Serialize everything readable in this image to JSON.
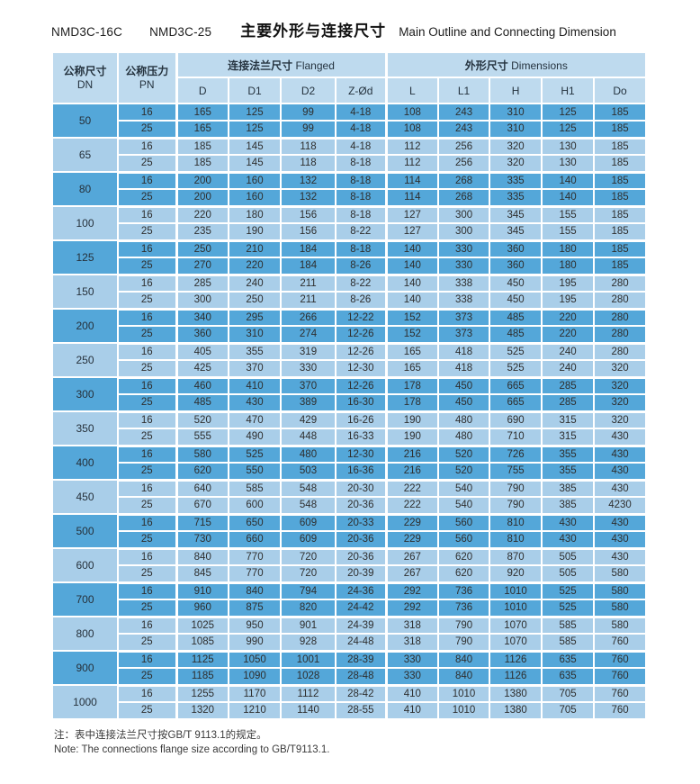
{
  "title": {
    "model1": "NMD3C-16C",
    "model2": "NMD3C-25",
    "cn": "主要外形与连接尺寸",
    "en": "Main Outline and Connecting Dimension"
  },
  "colors": {
    "header_bg": "#bedaee",
    "row_dark": "#54a7d9",
    "row_light": "#a9cee9",
    "border": "#ffffff"
  },
  "table": {
    "headers": {
      "dn_cn": "公称尺寸",
      "dn_code": "DN",
      "pn_cn": "公称压力",
      "pn_code": "PN",
      "flanged_group_cn": "连接法兰尺寸",
      "flanged_group_en": "Flanged",
      "dims_group_cn": "外形尺寸",
      "dims_group_en": "Dimensions",
      "flanged_cols": [
        "D",
        "D1",
        "D2",
        "Z-Ød"
      ],
      "dims_cols": [
        "L",
        "L1",
        "H",
        "H1",
        "Do"
      ]
    },
    "groups": [
      {
        "dn": "50",
        "shade": "dark",
        "rows": [
          [
            "16",
            "165",
            "125",
            "99",
            "4-18",
            "108",
            "243",
            "310",
            "125",
            "185"
          ],
          [
            "25",
            "165",
            "125",
            "99",
            "4-18",
            "108",
            "243",
            "310",
            "125",
            "185"
          ]
        ]
      },
      {
        "dn": "65",
        "shade": "light",
        "rows": [
          [
            "16",
            "185",
            "145",
            "118",
            "4-18",
            "112",
            "256",
            "320",
            "130",
            "185"
          ],
          [
            "25",
            "185",
            "145",
            "118",
            "8-18",
            "112",
            "256",
            "320",
            "130",
            "185"
          ]
        ]
      },
      {
        "dn": "80",
        "shade": "dark",
        "rows": [
          [
            "16",
            "200",
            "160",
            "132",
            "8-18",
            "114",
            "268",
            "335",
            "140",
            "185"
          ],
          [
            "25",
            "200",
            "160",
            "132",
            "8-18",
            "114",
            "268",
            "335",
            "140",
            "185"
          ]
        ]
      },
      {
        "dn": "100",
        "shade": "light",
        "rows": [
          [
            "16",
            "220",
            "180",
            "156",
            "8-18",
            "127",
            "300",
            "345",
            "155",
            "185"
          ],
          [
            "25",
            "235",
            "190",
            "156",
            "8-22",
            "127",
            "300",
            "345",
            "155",
            "185"
          ]
        ]
      },
      {
        "dn": "125",
        "shade": "dark",
        "rows": [
          [
            "16",
            "250",
            "210",
            "184",
            "8-18",
            "140",
            "330",
            "360",
            "180",
            "185"
          ],
          [
            "25",
            "270",
            "220",
            "184",
            "8-26",
            "140",
            "330",
            "360",
            "180",
            "185"
          ]
        ]
      },
      {
        "dn": "150",
        "shade": "light",
        "rows": [
          [
            "16",
            "285",
            "240",
            "211",
            "8-22",
            "140",
            "338",
            "450",
            "195",
            "280"
          ],
          [
            "25",
            "300",
            "250",
            "211",
            "8-26",
            "140",
            "338",
            "450",
            "195",
            "280"
          ]
        ]
      },
      {
        "dn": "200",
        "shade": "dark",
        "rows": [
          [
            "16",
            "340",
            "295",
            "266",
            "12-22",
            "152",
            "373",
            "485",
            "220",
            "280"
          ],
          [
            "25",
            "360",
            "310",
            "274",
            "12-26",
            "152",
            "373",
            "485",
            "220",
            "280"
          ]
        ]
      },
      {
        "dn": "250",
        "shade": "light",
        "rows": [
          [
            "16",
            "405",
            "355",
            "319",
            "12-26",
            "165",
            "418",
            "525",
            "240",
            "280"
          ],
          [
            "25",
            "425",
            "370",
            "330",
            "12-30",
            "165",
            "418",
            "525",
            "240",
            "320"
          ]
        ]
      },
      {
        "dn": "300",
        "shade": "dark",
        "rows": [
          [
            "16",
            "460",
            "410",
            "370",
            "12-26",
            "178",
            "450",
            "665",
            "285",
            "320"
          ],
          [
            "25",
            "485",
            "430",
            "389",
            "16-30",
            "178",
            "450",
            "665",
            "285",
            "320"
          ]
        ]
      },
      {
        "dn": "350",
        "shade": "light",
        "rows": [
          [
            "16",
            "520",
            "470",
            "429",
            "16-26",
            "190",
            "480",
            "690",
            "315",
            "320"
          ],
          [
            "25",
            "555",
            "490",
            "448",
            "16-33",
            "190",
            "480",
            "710",
            "315",
            "430"
          ]
        ]
      },
      {
        "dn": "400",
        "shade": "dark",
        "rows": [
          [
            "16",
            "580",
            "525",
            "480",
            "12-30",
            "216",
            "520",
            "726",
            "355",
            "430"
          ],
          [
            "25",
            "620",
            "550",
            "503",
            "16-36",
            "216",
            "520",
            "755",
            "355",
            "430"
          ]
        ]
      },
      {
        "dn": "450",
        "shade": "light",
        "rows": [
          [
            "16",
            "640",
            "585",
            "548",
            "20-30",
            "222",
            "540",
            "790",
            "385",
            "430"
          ],
          [
            "25",
            "670",
            "600",
            "548",
            "20-36",
            "222",
            "540",
            "790",
            "385",
            "4230"
          ]
        ]
      },
      {
        "dn": "500",
        "shade": "dark",
        "rows": [
          [
            "16",
            "715",
            "650",
            "609",
            "20-33",
            "229",
            "560",
            "810",
            "430",
            "430"
          ],
          [
            "25",
            "730",
            "660",
            "609",
            "20-36",
            "229",
            "560",
            "810",
            "430",
            "430"
          ]
        ]
      },
      {
        "dn": "600",
        "shade": "light",
        "rows": [
          [
            "16",
            "840",
            "770",
            "720",
            "20-36",
            "267",
            "620",
            "870",
            "505",
            "430"
          ],
          [
            "25",
            "845",
            "770",
            "720",
            "20-39",
            "267",
            "620",
            "920",
            "505",
            "580"
          ]
        ]
      },
      {
        "dn": "700",
        "shade": "dark",
        "rows": [
          [
            "16",
            "910",
            "840",
            "794",
            "24-36",
            "292",
            "736",
            "1010",
            "525",
            "580"
          ],
          [
            "25",
            "960",
            "875",
            "820",
            "24-42",
            "292",
            "736",
            "1010",
            "525",
            "580"
          ]
        ]
      },
      {
        "dn": "800",
        "shade": "light",
        "rows": [
          [
            "16",
            "1025",
            "950",
            "901",
            "24-39",
            "318",
            "790",
            "1070",
            "585",
            "580"
          ],
          [
            "25",
            "1085",
            "990",
            "928",
            "24-48",
            "318",
            "790",
            "1070",
            "585",
            "760"
          ]
        ]
      },
      {
        "dn": "900",
        "shade": "dark",
        "rows": [
          [
            "16",
            "1125",
            "1050",
            "1001",
            "28-39",
            "330",
            "840",
            "1126",
            "635",
            "760"
          ],
          [
            "25",
            "1185",
            "1090",
            "1028",
            "28-48",
            "330",
            "840",
            "1126",
            "635",
            "760"
          ]
        ]
      },
      {
        "dn": "1000",
        "shade": "light",
        "rows": [
          [
            "16",
            "1255",
            "1170",
            "1112",
            "28-42",
            "410",
            "1010",
            "1380",
            "705",
            "760"
          ],
          [
            "25",
            "1320",
            "1210",
            "1140",
            "28-55",
            "410",
            "1010",
            "1380",
            "705",
            "760"
          ]
        ]
      }
    ]
  },
  "notes": {
    "cn": "注：表中连接法兰尺寸按GB/T 9113.1的规定。",
    "en": "Note: The connections flange size according to GB/T9113.1."
  }
}
